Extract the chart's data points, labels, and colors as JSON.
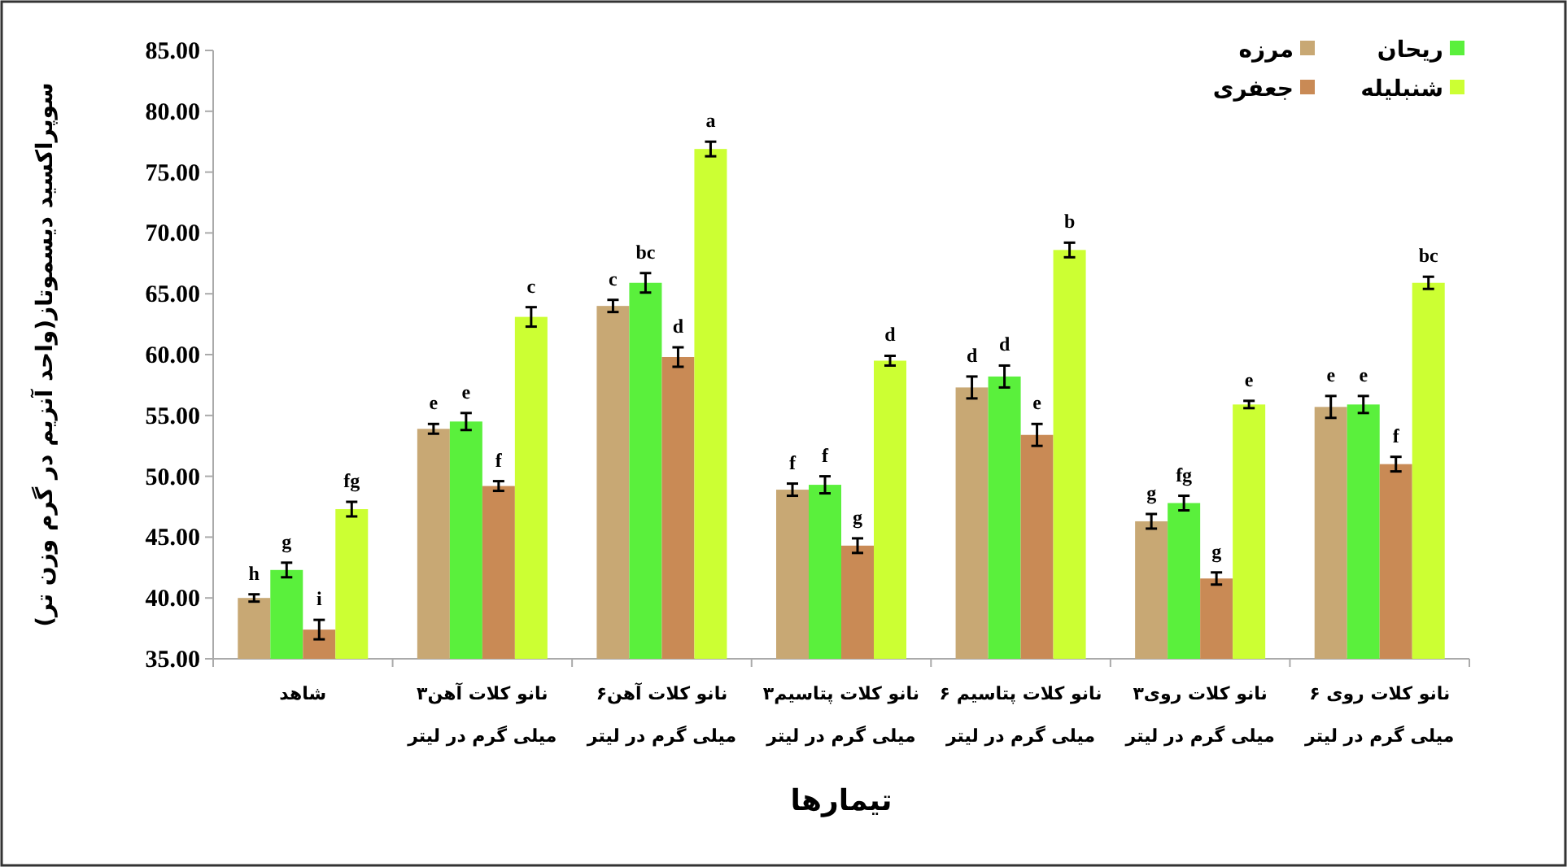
{
  "chart_data": {
    "type": "bar",
    "ylabel": "سوپراکسید دیسموتاز(واحد آنزیم در گرم وزن تر)",
    "xlabel": "تیمارها",
    "categories": [
      "شاهد",
      "نانو کلات آهن۳ میلی گرم در لیتر",
      "نانو کلات آهن۶ میلی گرم در لیتر",
      "نانو کلات پتاسیم۳ میلی گرم در لیتر",
      "نانو کلات پتاسیم ۶ میلی گرم در لیتر",
      "نانو کلات روی۳ میلی گرم در لیتر",
      "نانو کلات روی ۶ میلی گرم در لیتر"
    ],
    "series": [
      {
        "name": "مرزه",
        "color": "#c8a874",
        "values": [
          40.0,
          53.9,
          64.0,
          48.9,
          57.3,
          46.3,
          55.7
        ],
        "errors": [
          0.3,
          0.4,
          0.5,
          0.5,
          0.9,
          0.6,
          0.9
        ],
        "value_labels": [
          "h",
          "e",
          "c",
          "f",
          "d",
          "g",
          "e"
        ]
      },
      {
        "name": "ریحان",
        "color": "#5af03c",
        "values": [
          42.3,
          54.5,
          65.9,
          49.3,
          58.2,
          47.8,
          55.9
        ],
        "errors": [
          0.6,
          0.7,
          0.8,
          0.7,
          0.9,
          0.6,
          0.7
        ],
        "value_labels": [
          "g",
          "e",
          "bc",
          "f",
          "d",
          "fg",
          "e"
        ]
      },
      {
        "name": "جعفری",
        "color": "#c98a55",
        "values": [
          37.4,
          49.2,
          59.8,
          44.3,
          53.4,
          41.6,
          51.0
        ],
        "errors": [
          0.8,
          0.4,
          0.8,
          0.6,
          0.9,
          0.5,
          0.6
        ],
        "value_labels": [
          "i",
          "f",
          "d",
          "g",
          "e",
          "g",
          "f"
        ]
      },
      {
        "name": "شنبلیله",
        "color": "#ccff33",
        "values": [
          47.3,
          63.1,
          76.9,
          59.5,
          68.6,
          55.9,
          65.9
        ],
        "errors": [
          0.6,
          0.8,
          0.6,
          0.4,
          0.6,
          0.3,
          0.5
        ],
        "value_labels": [
          "fg",
          "c",
          "a",
          "d",
          "b",
          "e",
          "bc"
        ]
      }
    ],
    "ylim": [
      35,
      85
    ],
    "yticks": [
      {
        "value": 35,
        "label": "35.00"
      },
      {
        "value": 40,
        "label": "40.00"
      },
      {
        "value": 45,
        "label": "45.00"
      },
      {
        "value": 50,
        "label": "50.00"
      },
      {
        "value": 55,
        "label": "55.00"
      },
      {
        "value": 60,
        "label": "60.00"
      },
      {
        "value": 65,
        "label": "65.00"
      },
      {
        "value": 70,
        "label": "70.00"
      },
      {
        "value": 75,
        "label": "75.00"
      },
      {
        "value": 80,
        "label": "80.00"
      },
      {
        "value": 85,
        "label": "85.00"
      }
    ],
    "legend": "top right"
  }
}
